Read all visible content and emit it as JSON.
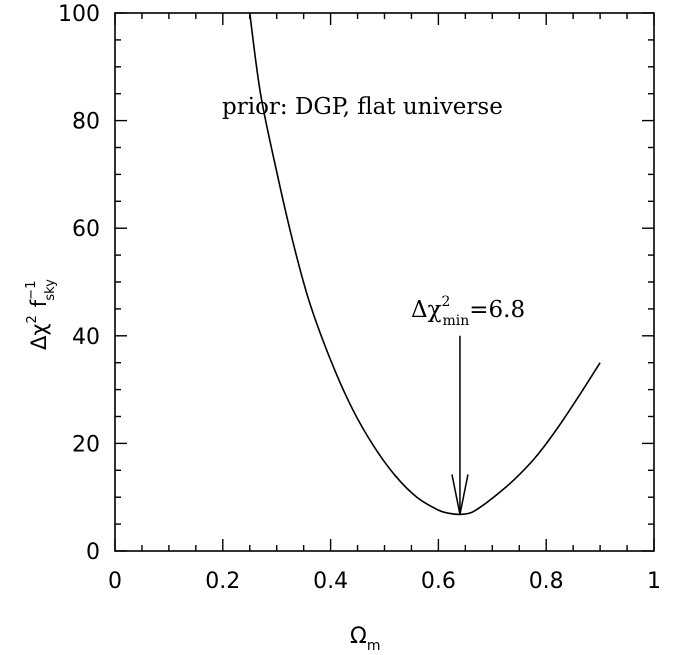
{
  "chart_data": {
    "type": "line",
    "title": "",
    "xlabel": "Ω",
    "xlabel_sub": "m",
    "ylabel_parts": {
      "delta": "Δχ",
      "sq": "2",
      "f": "f",
      "f_sup": "−1",
      "f_sub": "sky"
    },
    "xlim": [
      0,
      1
    ],
    "ylim": [
      0,
      100
    ],
    "x_ticks": [
      0,
      0.2,
      0.4,
      0.6,
      0.8,
      1
    ],
    "x_tick_labels": [
      "0",
      "0.2",
      "0.4",
      "0.6",
      "0.8",
      "1"
    ],
    "y_ticks": [
      0,
      20,
      40,
      60,
      80,
      100
    ],
    "y_tick_labels": [
      "0",
      "20",
      "40",
      "60",
      "80",
      "100"
    ],
    "x_minor_step": 0.05,
    "y_minor_step": 5,
    "grid": false,
    "series": [
      {
        "x": [
          0.25,
          0.27,
          0.3,
          0.33,
          0.36,
          0.4,
          0.44,
          0.48,
          0.52,
          0.56,
          0.6,
          0.62,
          0.64,
          0.66,
          0.68,
          0.7,
          0.74,
          0.78,
          0.82,
          0.86,
          0.9
        ],
        "y": [
          100,
          85,
          70.5,
          57.5,
          46.5,
          35.5,
          26.5,
          19.5,
          14,
          10,
          7.6,
          7.0,
          6.8,
          7.1,
          8.3,
          9.8,
          13.2,
          17.4,
          22.7,
          28.7,
          35.0
        ]
      }
    ],
    "annotations": [
      {
        "id": "prior",
        "text": "prior: DGP, flat universe"
      },
      {
        "id": "min",
        "main": "Δχ",
        "sup": "2",
        "sub": "min",
        "value": "=6.8",
        "arrow_from": [
          0.64,
          40
        ],
        "arrow_to": [
          0.64,
          6.8
        ]
      }
    ]
  }
}
